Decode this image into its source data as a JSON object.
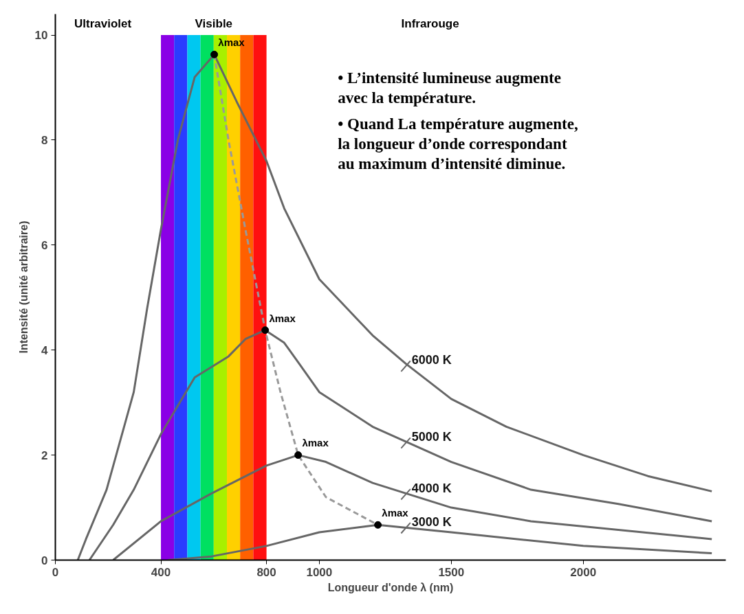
{
  "chart_data": {
    "type": "line",
    "xlabel": "Longueur d'onde λ (nm)",
    "ylabel": "Intensité (unité arbitraire)",
    "xlim": [
      0,
      2540
    ],
    "ylim": [
      0,
      10.4
    ],
    "xticks": [
      0,
      400,
      800,
      1000,
      1500,
      2000
    ],
    "yticks": [
      0,
      2,
      4,
      6,
      8,
      10
    ],
    "grid": false,
    "legend": "right",
    "marker": "none",
    "line_style": "solid",
    "series": [
      {
        "name": "6000 K",
        "color": "#666666",
        "x": [
          85,
          116,
          194,
          297,
          348,
          400,
          464,
          528,
          602,
          690,
          800,
          867,
          1000,
          1202,
          1328,
          1500,
          1709,
          2000,
          2245,
          2487
        ],
        "values": [
          0,
          0.4,
          1.34,
          3.2,
          4.8,
          6.3,
          8.0,
          9.2,
          9.63,
          8.7,
          7.6,
          6.7,
          5.35,
          4.28,
          3.74,
          3.07,
          2.54,
          2.0,
          1.6,
          1.31
        ]
      },
      {
        "name": "5000 K",
        "color": "#666666",
        "x": [
          129,
          219,
          297,
          400,
          528,
          656,
          720,
          795,
          867,
          924,
          1000,
          1202,
          1500,
          1802,
          2133,
          2487
        ],
        "values": [
          0,
          0.67,
          1.34,
          2.4,
          3.48,
          3.88,
          4.21,
          4.38,
          4.14,
          3.74,
          3.2,
          2.54,
          1.87,
          1.34,
          1.07,
          0.74
        ]
      },
      {
        "name": "4000 K",
        "color": "#666666",
        "x": [
          219,
          400,
          592,
          800,
          920,
          1025,
          1202,
          1500,
          1802,
          2487
        ],
        "values": [
          0,
          0.74,
          1.27,
          1.8,
          2.0,
          1.87,
          1.47,
          1.0,
          0.74,
          0.4
        ]
      },
      {
        "name": "3000 K",
        "color": "#666666",
        "x": [
          426,
          592,
          800,
          1000,
          1222,
          1500,
          2000,
          2487
        ],
        "values": [
          0,
          0.07,
          0.27,
          0.53,
          0.67,
          0.53,
          0.27,
          0.13
        ]
      },
      {
        "type": "line",
        "line_style": "dashed",
        "color": "#999999",
        "x": [
          602,
          656,
          720,
          795,
          853,
          920,
          1025,
          1222
        ],
        "values": [
          9.63,
          8.0,
          6.3,
          4.38,
          3.2,
          2.0,
          1.2,
          0.67
        ]
      },
      {
        "type": "scatter",
        "marker": "circle",
        "color": "#000000",
        "x": [
          602,
          795,
          920,
          1222
        ],
        "values": [
          9.63,
          4.38,
          2.0,
          0.67
        ]
      }
    ],
    "bands": [
      {
        "axis": "x",
        "from": 400,
        "to": 450,
        "color": "#8a00e6"
      },
      {
        "axis": "x",
        "from": 450,
        "to": 500,
        "color": "#2a3cff"
      },
      {
        "axis": "x",
        "from": 500,
        "to": 550,
        "color": "#00c8f0"
      },
      {
        "axis": "x",
        "from": 550,
        "to": 600,
        "color": "#00e060"
      },
      {
        "axis": "x",
        "from": 600,
        "to": 650,
        "color": "#a8f000"
      },
      {
        "axis": "x",
        "from": 650,
        "to": 700,
        "color": "#ffd000"
      },
      {
        "axis": "x",
        "from": 700,
        "to": 750,
        "color": "#ff6000"
      },
      {
        "axis": "x",
        "from": 750,
        "to": 800,
        "color": "#ff1010"
      }
    ],
    "annotations": [
      "Ultraviolet",
      "Visible",
      "Infrarouge",
      {
        "text": "λmax",
        "x": 602,
        "y": 9.63
      },
      {
        "text": "λmax",
        "x": 795,
        "y": 4.38
      },
      {
        "text": "λmax",
        "x": 920,
        "y": 2.0
      },
      {
        "text": "λmax",
        "x": 1222,
        "y": 0.67
      },
      "• L’intensité lumineuse augmente avec la température.",
      "• Quand La température augmente, la longueur d’onde correspondant au maximum d’intensité diminue."
    ]
  }
}
